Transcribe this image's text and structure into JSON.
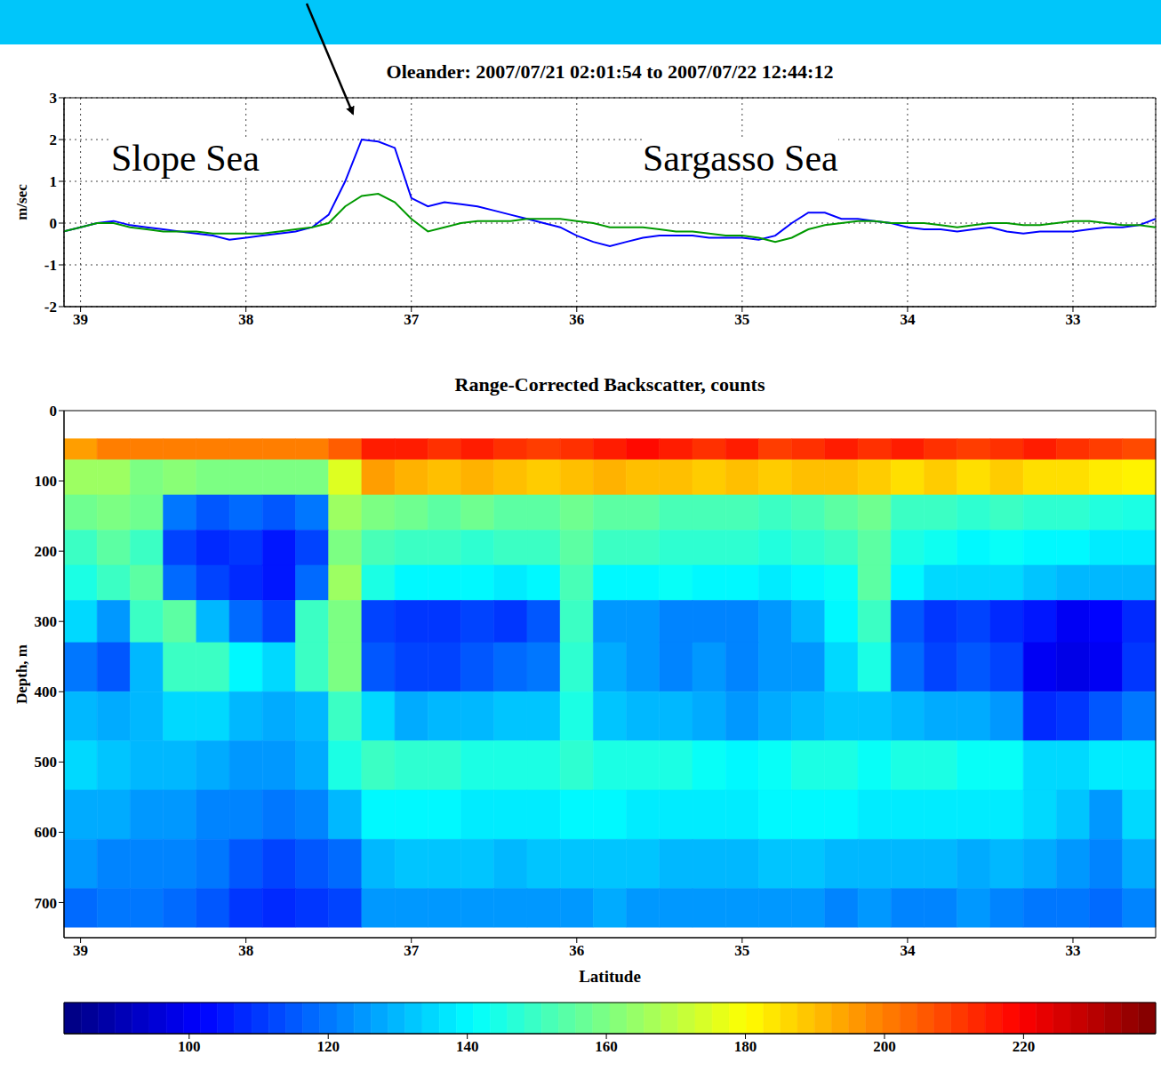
{
  "chart_data": [
    {
      "type": "line",
      "title": "Oleander: 2007/07/21 02:01:54 to 2007/07/22 12:44:12",
      "ylabel": "m/sec",
      "annotations": [
        "Slope Sea",
        "Sargasso Sea"
      ],
      "x": [
        39.1,
        39.0,
        38.9,
        38.8,
        38.7,
        38.6,
        38.5,
        38.4,
        38.3,
        38.2,
        38.1,
        38.0,
        37.9,
        37.8,
        37.7,
        37.6,
        37.5,
        37.4,
        37.3,
        37.2,
        37.1,
        37.0,
        36.9,
        36.8,
        36.7,
        36.6,
        36.5,
        36.4,
        36.3,
        36.2,
        36.1,
        36.0,
        35.9,
        35.8,
        35.7,
        35.6,
        35.5,
        35.4,
        35.3,
        35.2,
        35.1,
        35.0,
        34.9,
        34.8,
        34.7,
        34.6,
        34.5,
        34.4,
        34.3,
        34.2,
        34.1,
        34.0,
        33.9,
        33.8,
        33.7,
        33.6,
        33.5,
        33.4,
        33.3,
        33.2,
        33.1,
        33.0,
        32.9,
        32.8,
        32.7,
        32.6,
        32.5
      ],
      "series": [
        {
          "color": "#0000ff",
          "values": [
            -0.2,
            -0.1,
            0.0,
            0.05,
            -0.05,
            -0.1,
            -0.15,
            -0.2,
            -0.25,
            -0.3,
            -0.4,
            -0.35,
            -0.3,
            -0.25,
            -0.2,
            -0.1,
            0.2,
            1.0,
            2.0,
            1.95,
            1.8,
            0.6,
            0.4,
            0.5,
            0.45,
            0.4,
            0.3,
            0.2,
            0.1,
            0.0,
            -0.1,
            -0.3,
            -0.45,
            -0.55,
            -0.45,
            -0.35,
            -0.3,
            -0.3,
            -0.3,
            -0.35,
            -0.35,
            -0.35,
            -0.4,
            -0.3,
            0.0,
            0.25,
            0.25,
            0.1,
            0.1,
            0.05,
            0.0,
            -0.1,
            -0.15,
            -0.15,
            -0.2,
            -0.15,
            -0.1,
            -0.2,
            -0.25,
            -0.2,
            -0.2,
            -0.2,
            -0.15,
            -0.1,
            -0.1,
            -0.05,
            0.1
          ]
        },
        {
          "color": "#009900",
          "values": [
            -0.2,
            -0.1,
            0.0,
            0.0,
            -0.1,
            -0.15,
            -0.2,
            -0.2,
            -0.2,
            -0.25,
            -0.25,
            -0.25,
            -0.25,
            -0.2,
            -0.15,
            -0.1,
            0.0,
            0.4,
            0.65,
            0.7,
            0.5,
            0.1,
            -0.2,
            -0.1,
            0.0,
            0.05,
            0.05,
            0.05,
            0.1,
            0.1,
            0.1,
            0.05,
            0.0,
            -0.1,
            -0.1,
            -0.1,
            -0.15,
            -0.2,
            -0.2,
            -0.25,
            -0.3,
            -0.3,
            -0.35,
            -0.45,
            -0.35,
            -0.15,
            -0.05,
            0.0,
            0.05,
            0.05,
            0.0,
            0.0,
            0.0,
            -0.05,
            -0.1,
            -0.05,
            0.0,
            0.0,
            -0.05,
            -0.05,
            0.0,
            0.05,
            0.05,
            0.0,
            -0.05,
            -0.05,
            -0.1
          ]
        }
      ],
      "xlim": [
        39.1,
        32.5
      ],
      "ylim": [
        -2,
        3
      ],
      "xticks": [
        39,
        38,
        37,
        36,
        35,
        34,
        33
      ],
      "yticks": [
        -2,
        -1,
        0,
        1,
        2,
        3
      ],
      "grid": true
    },
    {
      "type": "heatmap",
      "title": "Range-Corrected Backscatter, counts",
      "xlabel": "Latitude",
      "ylabel": "Depth, m",
      "x_bins": [
        39.1,
        38.9,
        38.7,
        38.5,
        38.3,
        38.1,
        37.9,
        37.7,
        37.5,
        37.3,
        37.1,
        36.9,
        36.7,
        36.5,
        36.3,
        36.1,
        35.9,
        35.7,
        35.5,
        35.3,
        35.1,
        34.9,
        34.7,
        34.5,
        34.3,
        34.1,
        33.9,
        33.7,
        33.5,
        33.3,
        33.1,
        32.9,
        32.7,
        32.5
      ],
      "y_bins": [
        40,
        70,
        120,
        170,
        220,
        270,
        330,
        400,
        470,
        540,
        610,
        680,
        735
      ],
      "cells": [
        [
          195,
          200,
          200,
          200,
          200,
          200,
          200,
          200,
          205,
          215,
          215,
          212,
          215,
          212,
          210,
          212,
          215,
          218,
          215,
          212,
          215,
          210,
          212,
          215,
          212,
          215,
          212,
          210,
          212,
          215,
          212,
          210,
          208
        ],
        [
          165,
          165,
          160,
          162,
          160,
          160,
          160,
          160,
          175,
          195,
          192,
          190,
          192,
          190,
          188,
          190,
          192,
          190,
          190,
          188,
          190,
          188,
          190,
          190,
          188,
          185,
          188,
          185,
          188,
          185,
          185,
          183,
          182
        ],
        [
          158,
          160,
          158,
          120,
          115,
          118,
          115,
          120,
          165,
          160,
          158,
          155,
          158,
          155,
          155,
          158,
          155,
          155,
          152,
          152,
          152,
          150,
          152,
          155,
          158,
          150,
          150,
          148,
          150,
          148,
          148,
          146,
          145
        ],
        [
          150,
          155,
          150,
          112,
          108,
          110,
          105,
          112,
          160,
          152,
          150,
          150,
          148,
          150,
          150,
          155,
          150,
          150,
          148,
          148,
          148,
          146,
          148,
          150,
          155,
          145,
          143,
          140,
          142,
          140,
          140,
          138,
          138
        ],
        [
          145,
          150,
          155,
          118,
          112,
          108,
          105,
          118,
          165,
          145,
          140,
          140,
          140,
          138,
          140,
          152,
          140,
          140,
          142,
          140,
          140,
          138,
          140,
          142,
          155,
          140,
          135,
          135,
          135,
          132,
          130,
          130,
          130
        ],
        [
          135,
          125,
          150,
          155,
          130,
          118,
          112,
          150,
          160,
          112,
          110,
          110,
          112,
          110,
          115,
          150,
          125,
          125,
          122,
          122,
          122,
          125,
          130,
          140,
          150,
          115,
          110,
          112,
          108,
          105,
          100,
          102,
          108
        ],
        [
          120,
          115,
          130,
          150,
          150,
          140,
          135,
          150,
          160,
          115,
          112,
          112,
          115,
          118,
          120,
          148,
          128,
          125,
          122,
          125,
          122,
          125,
          125,
          135,
          145,
          118,
          112,
          115,
          112,
          100,
          98,
          100,
          110
        ],
        [
          130,
          128,
          130,
          135,
          135,
          130,
          128,
          130,
          150,
          135,
          128,
          130,
          130,
          132,
          132,
          145,
          132,
          130,
          130,
          128,
          125,
          128,
          130,
          132,
          132,
          130,
          128,
          128,
          125,
          108,
          110,
          115,
          120
        ],
        [
          135,
          132,
          130,
          130,
          128,
          125,
          125,
          128,
          145,
          150,
          148,
          148,
          145,
          145,
          145,
          148,
          145,
          145,
          145,
          142,
          140,
          142,
          145,
          145,
          142,
          145,
          145,
          142,
          142,
          135,
          135,
          138,
          138
        ],
        [
          128,
          128,
          125,
          125,
          122,
          122,
          120,
          122,
          130,
          140,
          140,
          140,
          138,
          138,
          138,
          140,
          140,
          138,
          138,
          138,
          138,
          140,
          140,
          140,
          138,
          138,
          138,
          138,
          138,
          135,
          132,
          125,
          135
        ],
        [
          125,
          122,
          122,
          122,
          120,
          115,
          112,
          115,
          118,
          130,
          132,
          132,
          132,
          130,
          132,
          132,
          132,
          132,
          130,
          130,
          130,
          132,
          132,
          130,
          130,
          130,
          130,
          128,
          130,
          128,
          125,
          122,
          128
        ],
        [
          118,
          120,
          120,
          118,
          115,
          110,
          108,
          110,
          112,
          125,
          125,
          125,
          125,
          125,
          125,
          125,
          128,
          125,
          125,
          125,
          125,
          125,
          125,
          122,
          125,
          122,
          122,
          125,
          122,
          120,
          120,
          118,
          122
        ]
      ],
      "xlim": [
        39.1,
        32.5
      ],
      "ylim": [
        750,
        0
      ],
      "xticks": [
        39,
        38,
        37,
        36,
        35,
        34,
        33
      ],
      "yticks": [
        0,
        100,
        200,
        300,
        400,
        500,
        600,
        700
      ],
      "color_range": [
        82,
        239
      ],
      "color_ticks": [
        100,
        120,
        140,
        160,
        180,
        200,
        220
      ]
    }
  ]
}
